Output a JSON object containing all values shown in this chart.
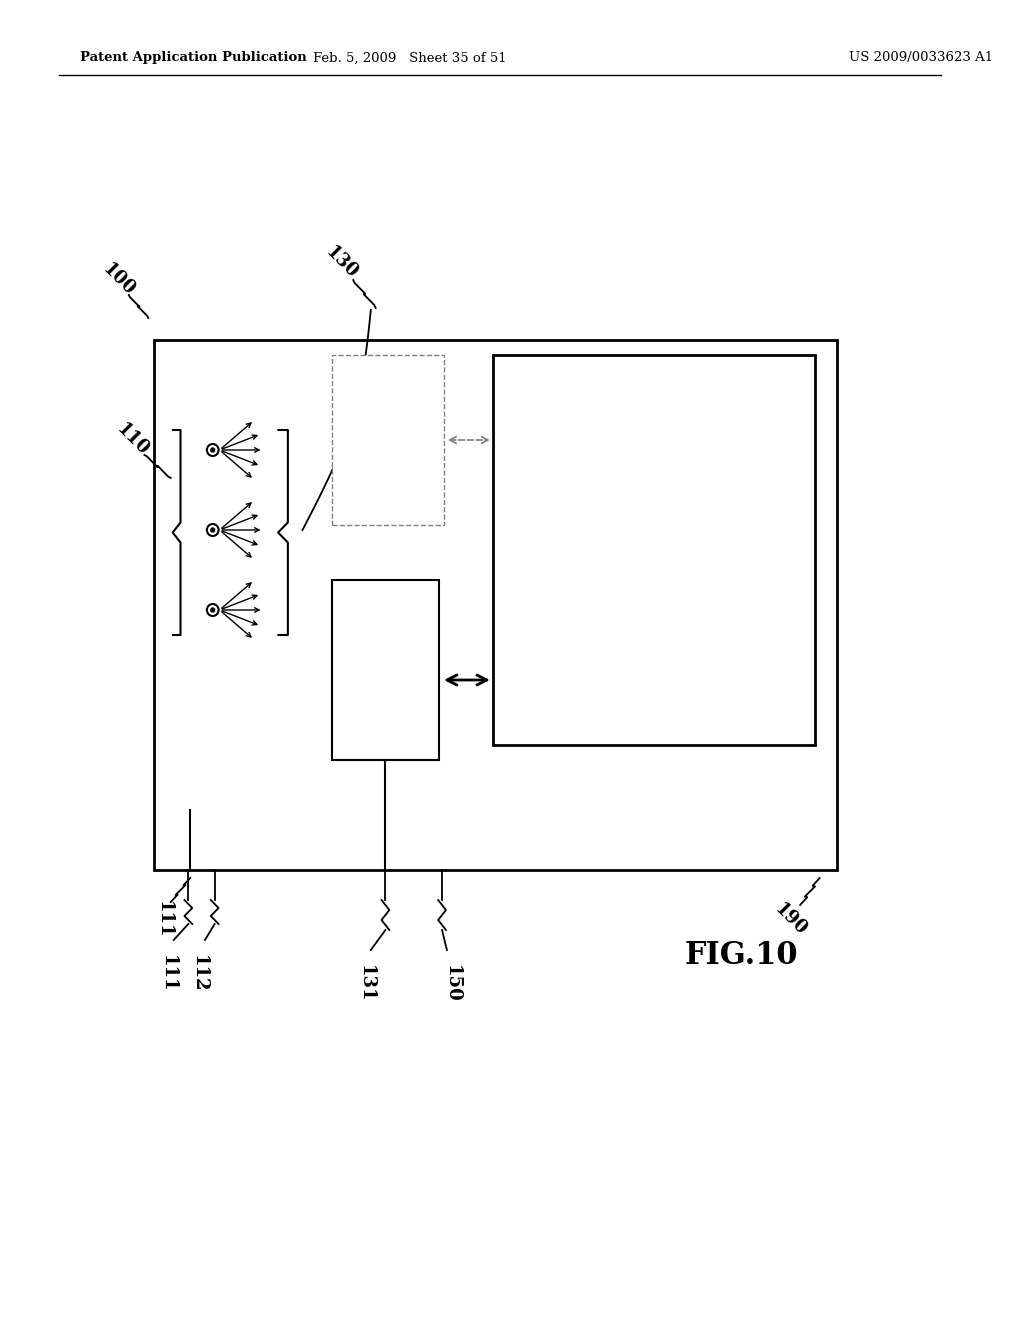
{
  "bg_color": "#ffffff",
  "header_left": "Patent Application Publication",
  "header_mid": "Feb. 5, 2009   Sheet 35 of 51",
  "header_right": "US 2009/0033623 A1",
  "fig_label": "FIG.10",
  "label_100": "100",
  "label_110": "110",
  "label_111": "111",
  "label_112": "112",
  "label_130": "130",
  "label_131": "131",
  "label_150": "150",
  "label_190": "190"
}
